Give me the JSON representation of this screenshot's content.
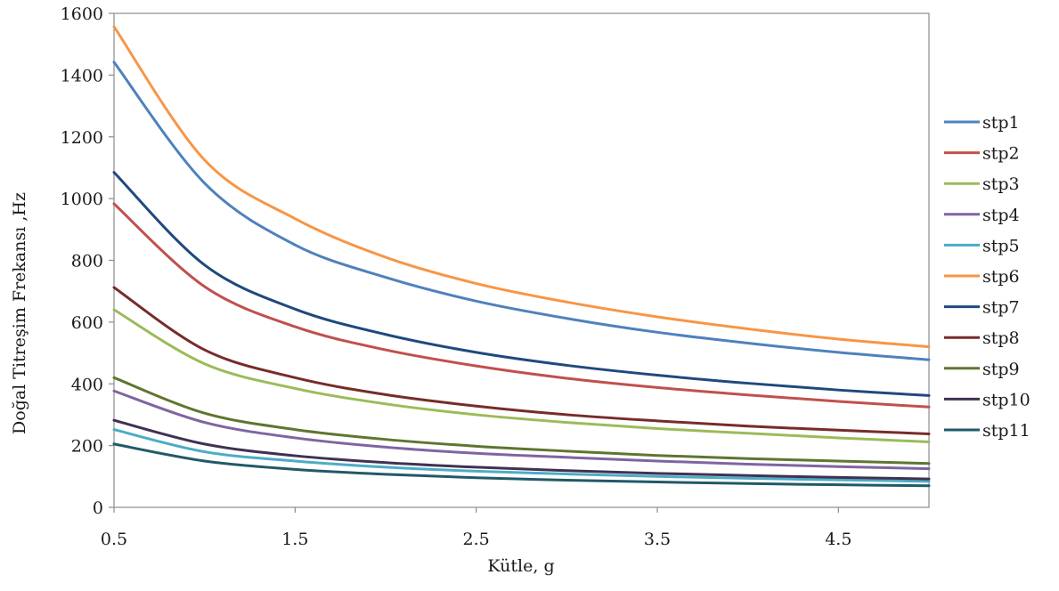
{
  "chart_data": {
    "type": "line",
    "title": "",
    "xlabel": "Kütle, g",
    "ylabel": "Doğal Titreşim Frekansı ,Hz",
    "xlim": [
      0.5,
      5.0
    ],
    "ylim": [
      0,
      1600
    ],
    "x_ticks": [
      "0.5",
      "1.5",
      "2.5",
      "3.5",
      "4.5"
    ],
    "x_tick_values": [
      0.5,
      1.5,
      2.5,
      3.5,
      4.5
    ],
    "y_ticks": [
      "0",
      "200",
      "400",
      "600",
      "800",
      "1000",
      "1200",
      "1400",
      "1600"
    ],
    "y_tick_values": [
      0,
      200,
      400,
      600,
      800,
      1000,
      1200,
      1400,
      1600
    ],
    "grid": false,
    "legend_position": "right",
    "x": [
      0.5,
      1.0,
      1.5,
      2.0,
      2.5,
      3.0,
      3.5,
      4.0,
      4.5,
      5.0
    ],
    "series": [
      {
        "name": "stp1",
        "color": "#4F81BD",
        "values": [
          1442,
          1050,
          850,
          745,
          668,
          612,
          567,
          532,
          502,
          478
        ]
      },
      {
        "name": "stp2",
        "color": "#C0504D",
        "values": [
          983,
          715,
          585,
          510,
          458,
          418,
          388,
          364,
          343,
          325
        ]
      },
      {
        "name": "stp3",
        "color": "#9BBB59",
        "values": [
          640,
          465,
          385,
          335,
          300,
          275,
          255,
          240,
          225,
          212
        ]
      },
      {
        "name": "stp4",
        "color": "#8064A2",
        "values": [
          377,
          275,
          225,
          195,
          175,
          162,
          150,
          140,
          132,
          125
        ]
      },
      {
        "name": "stp5",
        "color": "#4BACC6",
        "values": [
          252,
          180,
          150,
          130,
          117,
          108,
          100,
          94,
          89,
          84
        ]
      },
      {
        "name": "stp6",
        "color": "#F79646",
        "values": [
          1557,
          1125,
          935,
          810,
          725,
          665,
          617,
          578,
          545,
          520
        ]
      },
      {
        "name": "stp7",
        "color": "#1F497D",
        "values": [
          1085,
          785,
          642,
          560,
          502,
          460,
          428,
          402,
          380,
          362
        ]
      },
      {
        "name": "stp8",
        "color": "#772C2A",
        "values": [
          712,
          510,
          420,
          365,
          328,
          300,
          280,
          263,
          250,
          238
        ]
      },
      {
        "name": "stp9",
        "color": "#5F7530",
        "values": [
          420,
          305,
          252,
          220,
          198,
          182,
          168,
          158,
          150,
          142
        ]
      },
      {
        "name": "stp10",
        "color": "#403152",
        "values": [
          282,
          205,
          167,
          145,
          130,
          119,
          110,
          103,
          97,
          92
        ]
      },
      {
        "name": "stp11",
        "color": "#215968",
        "values": [
          205,
          150,
          123,
          107,
          96,
          88,
          82,
          77,
          73,
          70
        ]
      }
    ]
  }
}
